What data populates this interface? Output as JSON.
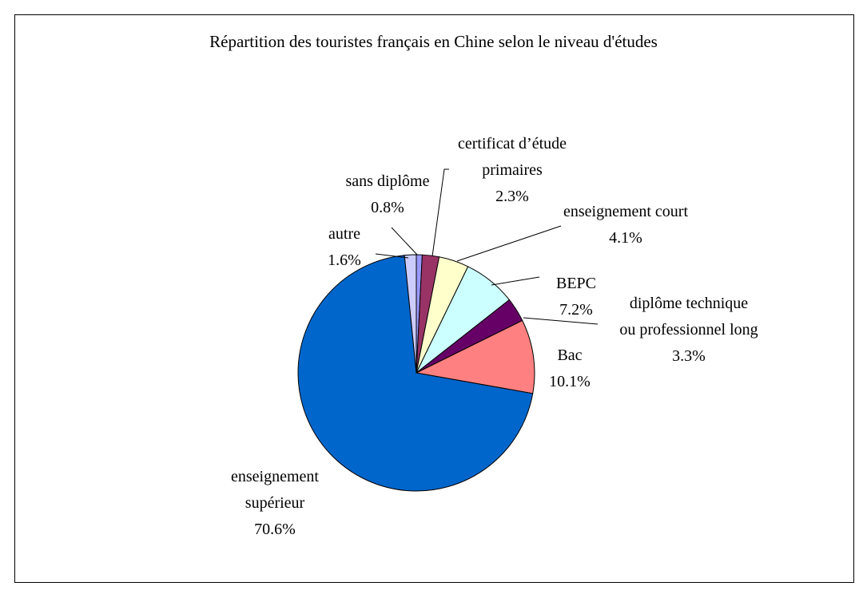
{
  "chart_data": {
    "type": "pie",
    "title": "Répartition des touristes français en Chine selon le niveau d'études",
    "categories": [
      "sans diplôme",
      "certificat d’étude\nprimaires",
      "enseignement court",
      "BEPC",
      "diplôme technique\nou professionnel long",
      "Bac",
      "enseignement\nsupérieur",
      "autre"
    ],
    "values": [
      0.8,
      2.3,
      4.1,
      7.2,
      3.3,
      10.1,
      70.6,
      1.6
    ],
    "value_labels": [
      "0.8%",
      "2.3%",
      "4.1%",
      "7.2%",
      "3.3%",
      "10.1%",
      "70.6%",
      "1.6%"
    ],
    "colors": [
      "#9999ff",
      "#993366",
      "#ffffcc",
      "#ccffff",
      "#660066",
      "#ff8080",
      "#0066cc",
      "#ccccff"
    ]
  }
}
